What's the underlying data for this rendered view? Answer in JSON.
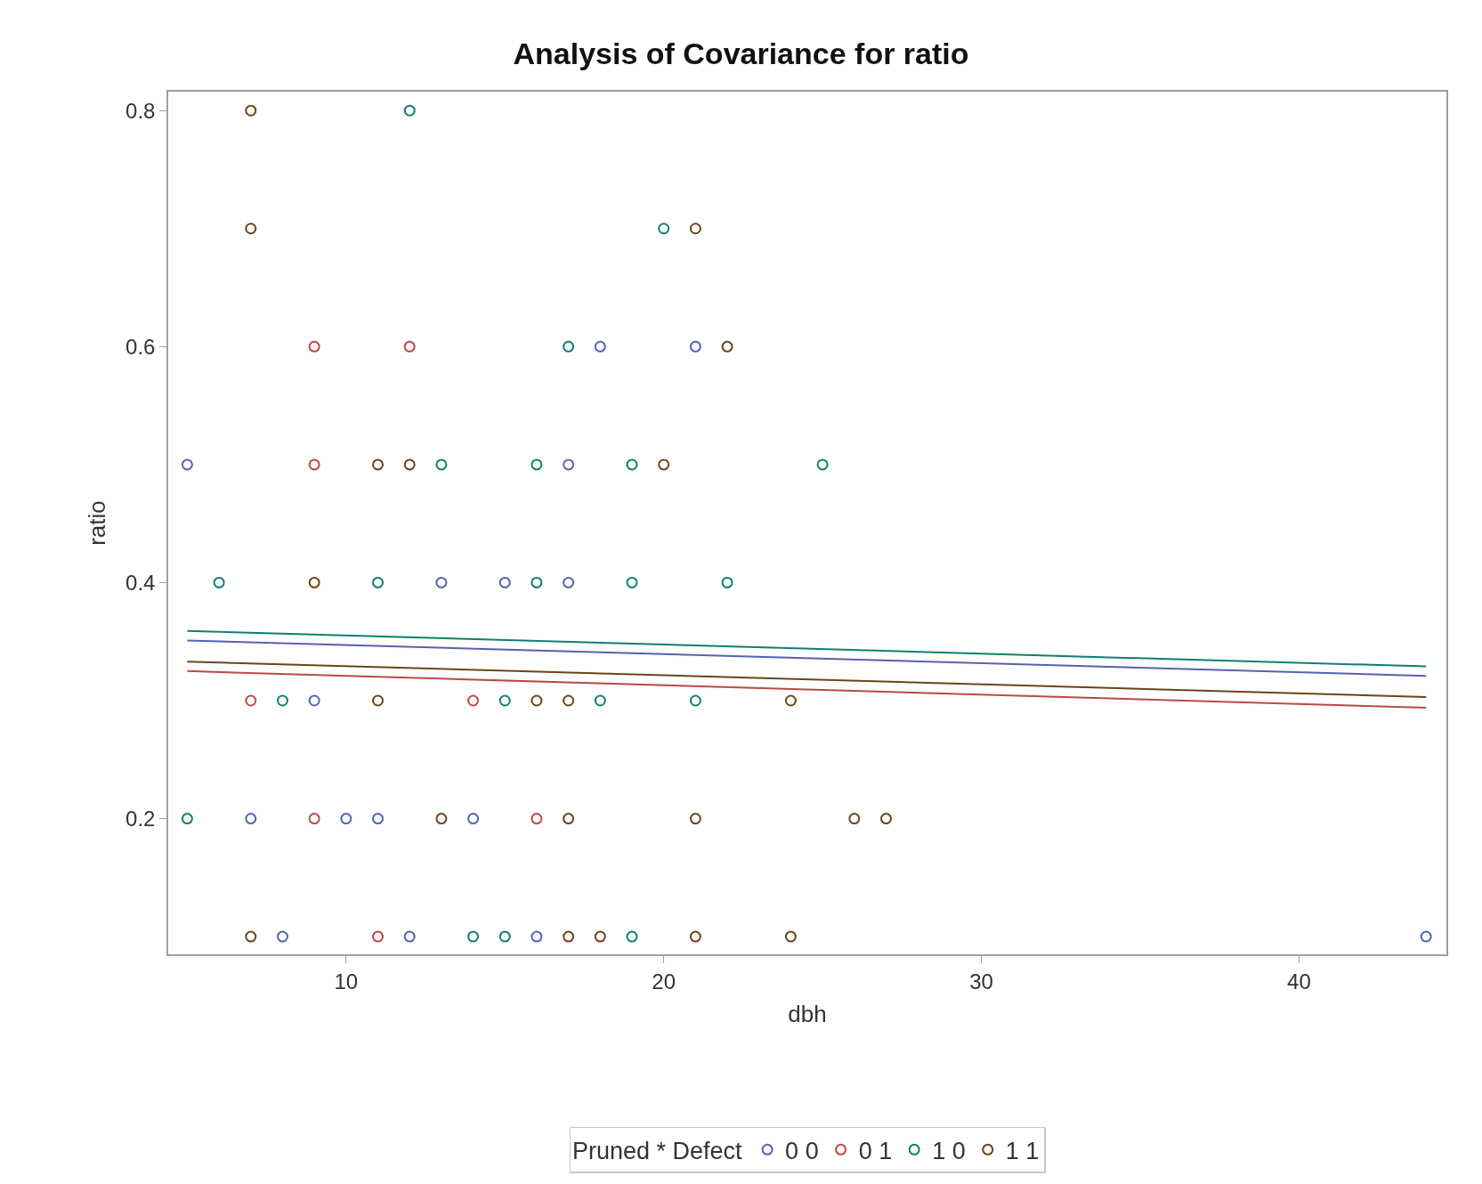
{
  "chart_data": {
    "type": "scatter",
    "title": "Analysis of Covariance for ratio",
    "xlabel": "dbh",
    "ylabel": "ratio",
    "legend_title": "Pruned * Defect",
    "legend": "bottom",
    "marker": "circle",
    "xlim": [
      4.4,
      44.64
    ],
    "xticks": [
      10,
      20,
      30,
      40
    ],
    "ylim": [
      0.085,
      0.816
    ],
    "yticks": [
      0.2,
      0.4,
      0.6,
      0.8
    ],
    "series": [
      {
        "name": "0 0",
        "color": "#5563b0",
        "x": [
          18,
          21,
          5,
          17,
          13,
          15,
          17,
          9,
          7,
          10,
          11,
          14,
          8,
          12,
          16,
          44
        ],
        "values": [
          0.6,
          0.6,
          0.5,
          0.5,
          0.4,
          0.4,
          0.4,
          0.3,
          0.2,
          0.2,
          0.2,
          0.2,
          0.1,
          0.1,
          0.1,
          0.1
        ]
      },
      {
        "name": "0 1",
        "color": "#b94a44",
        "x": [
          9,
          12,
          9,
          7,
          14,
          9,
          16,
          11
        ],
        "values": [
          0.6,
          0.6,
          0.5,
          0.3,
          0.3,
          0.2,
          0.2,
          0.1
        ]
      },
      {
        "name": "1 0",
        "color": "#0f7f72",
        "x": [
          12,
          20,
          17,
          13,
          16,
          19,
          25,
          6,
          11,
          16,
          19,
          22,
          8,
          15,
          18,
          21,
          5,
          14,
          15,
          19
        ],
        "values": [
          0.8,
          0.7,
          0.6,
          0.5,
          0.5,
          0.5,
          0.5,
          0.4,
          0.4,
          0.4,
          0.4,
          0.4,
          0.3,
          0.3,
          0.3,
          0.3,
          0.2,
          0.1,
          0.1,
          0.1
        ]
      },
      {
        "name": "1 1",
        "color": "#6b4515",
        "x": [
          7,
          7,
          21,
          22,
          11,
          12,
          20,
          9,
          11,
          16,
          17,
          24,
          13,
          17,
          21,
          26,
          27,
          7,
          17,
          18,
          21,
          24
        ],
        "values": [
          0.8,
          0.7,
          0.7,
          0.6,
          0.5,
          0.5,
          0.5,
          0.4,
          0.3,
          0.3,
          0.3,
          0.3,
          0.2,
          0.2,
          0.2,
          0.2,
          0.2,
          0.1,
          0.1,
          0.1,
          0.1,
          0.1
        ]
      },
      {
        "type": "line",
        "marker": "none",
        "color": "#5563b0",
        "x": [
          5,
          44
        ],
        "values": [
          0.351,
          0.321
        ]
      },
      {
        "type": "line",
        "marker": "none",
        "color": "#b94a44",
        "x": [
          5,
          44
        ],
        "values": [
          0.325,
          0.294
        ]
      },
      {
        "type": "line",
        "marker": "none",
        "color": "#0f7f72",
        "x": [
          5,
          44
        ],
        "values": [
          0.359,
          0.329
        ]
      },
      {
        "type": "line",
        "marker": "none",
        "color": "#6b4515",
        "x": [
          5,
          44
        ],
        "values": [
          0.333,
          0.303
        ]
      }
    ]
  }
}
